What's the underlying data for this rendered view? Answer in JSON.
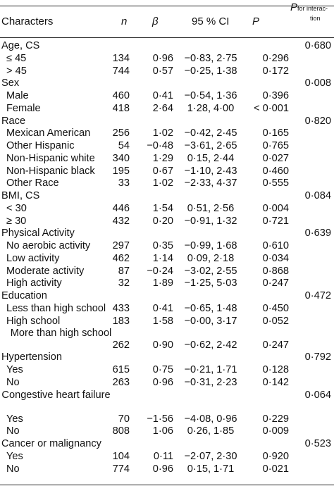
{
  "header": {
    "characters": "Characters",
    "n": "n",
    "beta": "β",
    "ci": "95 % CI",
    "p": "P",
    "p_interaction_symbol": "P",
    "p_interaction_sub_1": "for interac-",
    "p_interaction_sub_2": "tion"
  },
  "rows": [
    {
      "label": "Age, CS",
      "n": "",
      "beta": "",
      "ci": "",
      "p": "",
      "pint": "0·680"
    },
    {
      "label": "≤ 45",
      "n": "134",
      "beta": "0·96",
      "ci": "−0·83, 2·75",
      "p": "0·296",
      "pint": ""
    },
    {
      "label": "> 45",
      "n": "744",
      "beta": "0·57",
      "ci": "−0·25, 1·38",
      "p": "0·172",
      "pint": ""
    },
    {
      "label": "Sex",
      "n": "",
      "beta": "",
      "ci": "",
      "p": "",
      "pint": "0·008"
    },
    {
      "label": "Male",
      "n": "460",
      "beta": "0·41",
      "ci": "−0·54, 1·36",
      "p": "0·396",
      "pint": ""
    },
    {
      "label": "Female",
      "n": "418",
      "beta": "2·64",
      "ci": "1·28, 4·00",
      "p": "< 0·001",
      "pint": ""
    },
    {
      "label": "Race",
      "n": "",
      "beta": "",
      "ci": "",
      "p": "",
      "pint": "0·820"
    },
    {
      "label": "Mexican American",
      "n": "256",
      "beta": "1·02",
      "ci": "−0·42, 2·45",
      "p": "0·165",
      "pint": ""
    },
    {
      "label": "Other Hispanic",
      "n": "54",
      "beta": "−0·48",
      "ci": "−3·61, 2·65",
      "p": "0·765",
      "pint": ""
    },
    {
      "label": "Non-Hispanic white",
      "n": "340",
      "beta": "1·29",
      "ci": "0·15, 2·44",
      "p": "0·027",
      "pint": ""
    },
    {
      "label": "Non-Hispanic black",
      "n": "195",
      "beta": "0·67",
      "ci": "−1·10, 2·43",
      "p": "0·460",
      "pint": ""
    },
    {
      "label": "Other Race",
      "n": "33",
      "beta": "1·02",
      "ci": "−2·33, 4·37",
      "p": "0·555",
      "pint": ""
    },
    {
      "label": "BMI, CS",
      "n": "",
      "beta": "",
      "ci": "",
      "p": "",
      "pint": "0·084"
    },
    {
      "label": "< 30",
      "n": "446",
      "beta": "1·54",
      "ci": "0·51, 2·56",
      "p": "0·004",
      "pint": ""
    },
    {
      "label": "≥ 30",
      "n": "432",
      "beta": "0·20",
      "ci": "−0·91, 1·32",
      "p": "0·721",
      "pint": ""
    },
    {
      "label": "Physical Activity",
      "n": "",
      "beta": "",
      "ci": "",
      "p": "",
      "pint": "0·639"
    },
    {
      "label": "No aerobic activity",
      "n": "297",
      "beta": "0·35",
      "ci": "−0·99, 1·68",
      "p": "0·610",
      "pint": ""
    },
    {
      "label": "Low activity",
      "n": "462",
      "beta": "1·14",
      "ci": "0·09, 2·18",
      "p": "0·034",
      "pint": ""
    },
    {
      "label": "Moderate activity",
      "n": "87",
      "beta": "−0·24",
      "ci": "−3·02, 2·55",
      "p": "0·868",
      "pint": ""
    },
    {
      "label": "High activity",
      "n": "32",
      "beta": "1·89",
      "ci": "−1·25, 5·03",
      "p": "0·247",
      "pint": ""
    },
    {
      "label": "Education",
      "n": "",
      "beta": "",
      "ci": "",
      "p": "",
      "pint": "0·472"
    },
    {
      "label": "Less than high school",
      "n": "433",
      "beta": "0·41",
      "ci": "−0·65, 1·48",
      "p": "0·450",
      "pint": ""
    },
    {
      "label": "High school",
      "n": "183",
      "beta": "1·58",
      "ci": "−0·00, 3·17",
      "p": "0·052",
      "pint": ""
    },
    {
      "label": "More than high school",
      "n": "262",
      "beta": "0·90",
      "ci": "−0·62, 2·42",
      "p": "0·247",
      "pint": ""
    },
    {
      "label": "Hypertension",
      "n": "",
      "beta": "",
      "ci": "",
      "p": "",
      "pint": "0·792"
    },
    {
      "label": "Yes",
      "n": "615",
      "beta": "0·75",
      "ci": "−0·21, 1·71",
      "p": "0·128",
      "pint": ""
    },
    {
      "label": "No",
      "n": "263",
      "beta": "0·96",
      "ci": "−0·31, 2·23",
      "p": "0·142",
      "pint": ""
    },
    {
      "label": "Congestive heart failure",
      "n": "",
      "beta": "",
      "ci": "",
      "p": "",
      "pint": "0·064"
    },
    {
      "label": "Yes",
      "n": "70",
      "beta": "−1·56",
      "ci": "−4·08, 0·96",
      "p": "0·229",
      "pint": ""
    },
    {
      "label": "No",
      "n": "808",
      "beta": "1·06",
      "ci": "0·26, 1·85",
      "p": "0·009",
      "pint": ""
    },
    {
      "label": "Cancer or malignancy",
      "n": "",
      "beta": "",
      "ci": "",
      "p": "",
      "pint": "0·523"
    },
    {
      "label": "Yes",
      "n": "104",
      "beta": "0·11",
      "ci": "−2·07, 2·30",
      "p": "0·920",
      "pint": ""
    },
    {
      "label": "No",
      "n": "774",
      "beta": "0·96",
      "ci": "0·15, 1·71",
      "p": "0·021",
      "pint": ""
    }
  ]
}
